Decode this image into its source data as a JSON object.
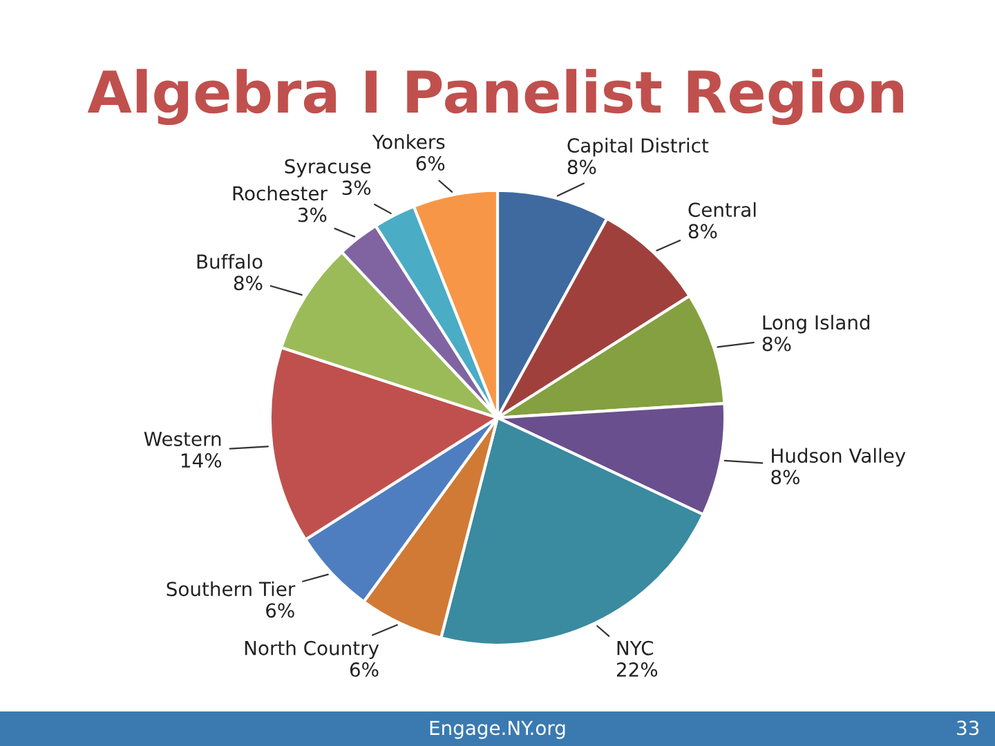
{
  "chart_data": {
    "type": "pie",
    "title": "Algebra I Panelist Region",
    "categories": [
      "Capital District",
      "Central",
      "Long Island",
      "Hudson Valley",
      "NYC",
      "North Country",
      "Southern Tier",
      "Western",
      "Buffalo",
      "Rochester",
      "Syracuse",
      "Yonkers"
    ],
    "values": [
      8,
      8,
      8,
      8,
      22,
      6,
      6,
      14,
      8,
      3,
      3,
      6
    ],
    "value_labels": [
      "8%",
      "8%",
      "8%",
      "8%",
      "22%",
      "6%",
      "6%",
      "14%",
      "8%",
      "3%",
      "3%",
      "6%"
    ],
    "colors": [
      "#3f6aa0",
      "#a0403c",
      "#84a040",
      "#6a4f8e",
      "#3a8aa0",
      "#d07a35",
      "#4f7ec0",
      "#c0504d",
      "#9bbb59",
      "#8064a2",
      "#4bacc6",
      "#f79646"
    ],
    "annotations": [
      "Engage.NY.org",
      "33"
    ]
  }
}
